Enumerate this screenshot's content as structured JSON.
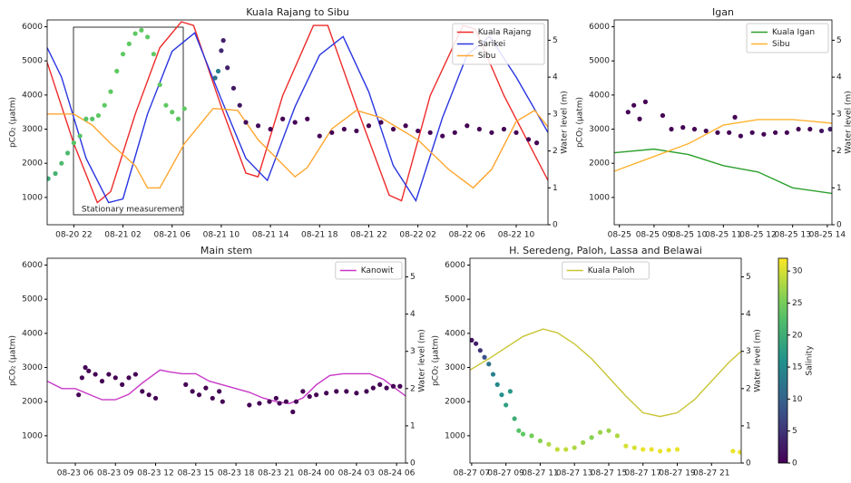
{
  "chart_data": [
    {
      "type": "scatter",
      "title": "Kuala Rajang to Sibu",
      "ylabel": "pCO₂ (µatm)",
      "y2label": "Water level (m)",
      "annotation": "Stationary measurement",
      "xlim": [
        "08-20 19:50",
        "08-22 12:35"
      ],
      "xticks": [
        "08-20 22",
        "08-21 02",
        "08-21 06",
        "08-21 10",
        "08-21 14",
        "08-21 18",
        "08-21 22",
        "08-22 02",
        "08-22 06",
        "08-22 10"
      ],
      "ylim": [
        200,
        6200
      ],
      "yticks": [
        1000,
        2000,
        3000,
        4000,
        5000,
        6000
      ],
      "y2lim": [
        0,
        5.55
      ],
      "y2ticks": [
        0,
        1,
        2,
        3,
        4,
        5
      ],
      "legend": "upper right",
      "colormap": "viridis",
      "points": {
        "x": [
          "08-20 19:55",
          "08-20 20:30",
          "08-20 21:00",
          "08-20 21:30",
          "08-20 22:00",
          "08-20 22:30",
          "08-20 23:00",
          "08-20 23:30",
          "08-21 00:00",
          "08-21 00:30",
          "08-21 01:00",
          "08-21 01:30",
          "08-21 02:00",
          "08-21 02:30",
          "08-21 03:00",
          "08-21 03:30",
          "08-21 04:00",
          "08-21 04:30",
          "08-21 05:00",
          "08-21 05:30",
          "08-21 06:00",
          "08-21 06:30",
          "08-21 07:00",
          "08-21 09:30",
          "08-21 09:45",
          "08-21 10:00",
          "08-21 10:10",
          "08-21 10:30",
          "08-21 11:00",
          "08-21 11:30",
          "08-21 12:00",
          "08-21 13:00",
          "08-21 14:00",
          "08-21 15:00",
          "08-21 16:00",
          "08-21 17:00",
          "08-21 18:00",
          "08-21 19:00",
          "08-21 20:00",
          "08-21 21:00",
          "08-21 22:00",
          "08-21 23:00",
          "08-22 00:00",
          "08-22 01:00",
          "08-22 02:00",
          "08-22 03:00",
          "08-22 04:00",
          "08-22 05:00",
          "08-22 06:00",
          "08-22 07:00",
          "08-22 08:00",
          "08-22 09:00",
          "08-22 10:00",
          "08-22 11:00",
          "08-22 11:40"
        ],
        "values": [
          1550,
          1700,
          2000,
          2300,
          2600,
          2800,
          3300,
          3300,
          3400,
          3700,
          4100,
          4700,
          5200,
          5500,
          5800,
          5900,
          5700,
          5200,
          4300,
          3700,
          3500,
          3300,
          3600,
          4500,
          4700,
          5300,
          5600,
          4800,
          4200,
          3700,
          3200,
          3100,
          3000,
          3300,
          3200,
          3300,
          2800,
          2900,
          3000,
          2950,
          3100,
          3200,
          3000,
          3100,
          2950,
          2900,
          2800,
          2900,
          3100,
          3000,
          2900,
          3000,
          2900,
          2700,
          2600
        ],
        "salinity": [
          20,
          21,
          22,
          22,
          23,
          23,
          23,
          23,
          24,
          24,
          24,
          24,
          24,
          24,
          24,
          24,
          24,
          24,
          24,
          24,
          24,
          24,
          24,
          12,
          14,
          4,
          3,
          3,
          2,
          2,
          1,
          1,
          0,
          0,
          0,
          0,
          0,
          0,
          0,
          0,
          0,
          0,
          0,
          0,
          0,
          0,
          0,
          0,
          0,
          0,
          0,
          0,
          0,
          0,
          0
        ]
      },
      "series": [
        {
          "name": "Kuala Rajang",
          "color": "#ee2a2a",
          "axis": "y2",
          "x": [
            "08-20 19:50",
            "08-20 22:00",
            "08-20 23:55",
            "08-21 01:00",
            "08-21 03:00",
            "08-21 05:00",
            "08-21 06:45",
            "08-21 07:45",
            "08-21 10:00",
            "08-21 12:00",
            "08-21 13:00",
            "08-21 15:00",
            "08-21 17:30",
            "08-21 18:40",
            "08-21 21:00",
            "08-21 23:40",
            "08-22 00:40",
            "08-22 03:00",
            "08-22 05:40",
            "08-22 06:40",
            "08-22 09:00",
            "08-22 12:35"
          ],
          "values": [
            4.4,
            2.2,
            0.6,
            0.9,
            3.0,
            4.8,
            5.5,
            5.4,
            3.2,
            1.4,
            1.3,
            3.5,
            5.4,
            5.4,
            3.2,
            0.8,
            0.65,
            3.5,
            5.4,
            5.3,
            3.5,
            1.2
          ]
        },
        {
          "name": "Sarikei",
          "color": "#2a35e0",
          "axis": "y2",
          "x": [
            "08-20 19:50",
            "08-20 21:00",
            "08-20 23:00",
            "08-21 00:50",
            "08-21 02:00",
            "08-21 04:00",
            "08-21 06:00",
            "08-21 07:50",
            "08-21 10:00",
            "08-21 12:00",
            "08-21 13:45",
            "08-21 16:00",
            "08-21 18:00",
            "08-21 19:55",
            "08-21 22:00",
            "08-22 00:00",
            "08-22 01:50",
            "08-22 04:00",
            "08-22 06:00",
            "08-22 07:50",
            "08-22 10:00",
            "08-22 12:35"
          ],
          "values": [
            4.8,
            4.0,
            1.8,
            0.6,
            0.7,
            3.0,
            4.7,
            5.2,
            3.4,
            1.8,
            1.2,
            3.2,
            4.6,
            5.1,
            3.6,
            1.6,
            0.65,
            2.9,
            4.6,
            5.1,
            4.0,
            2.5
          ]
        },
        {
          "name": "Sibu",
          "color": "#ffa630",
          "axis": "y2",
          "x": [
            "08-20 19:50",
            "08-20 22:00",
            "08-20 23:30",
            "08-21 01:00",
            "08-21 03:00",
            "08-21 04:00",
            "08-21 05:00",
            "08-21 07:00",
            "08-21 09:20",
            "08-21 11:20",
            "08-21 13:00",
            "08-21 16:00",
            "08-21 17:00",
            "08-21 19:00",
            "08-21 21:00",
            "08-21 23:00",
            "08-22 02:00",
            "08-22 04:30",
            "08-22 06:30",
            "08-22 08:00",
            "08-22 10:00",
            "08-22 11:30",
            "08-22 12:35"
          ],
          "values": [
            3.0,
            3.0,
            2.7,
            2.2,
            1.6,
            1.0,
            1.0,
            2.2,
            3.15,
            3.1,
            2.3,
            1.3,
            1.55,
            2.6,
            3.1,
            2.9,
            2.3,
            1.5,
            1.0,
            1.5,
            2.8,
            3.1,
            2.65
          ]
        }
      ]
    },
    {
      "type": "scatter",
      "title": "Igan",
      "ylabel": "pCO₂ (µatm)",
      "y2label": "Water level (m)",
      "xlim": [
        "08-25 07:51",
        "08-25 14:08"
      ],
      "xticks": [
        {
          "value": "08-25 08",
          "label": "08-25"
        },
        "08-25 09",
        "08-25 10",
        "08-25 11",
        "08-25 12",
        "08-25 13",
        "08-25 14"
      ],
      "ylim": [
        200,
        6200
      ],
      "yticks": [
        1000,
        2000,
        3000,
        4000,
        5000,
        6000
      ],
      "y2lim": [
        0,
        5.55
      ],
      "y2ticks": [
        0,
        1,
        2,
        3,
        4,
        5
      ],
      "legend": "upper right",
      "colormap": "viridis",
      "points": {
        "x": [
          "08-25 08:15",
          "08-25 08:25",
          "08-25 08:35",
          "08-25 08:45",
          "08-25 09:15",
          "08-25 09:30",
          "08-25 09:50",
          "08-25 10:10",
          "08-25 10:30",
          "08-25 10:50",
          "08-25 11:10",
          "08-25 11:20",
          "08-25 11:30",
          "08-25 11:50",
          "08-25 12:10",
          "08-25 12:30",
          "08-25 12:50",
          "08-25 13:10",
          "08-25 13:30",
          "08-25 13:50",
          "08-25 14:05"
        ],
        "values": [
          3500,
          3700,
          3300,
          3800,
          3400,
          3000,
          3050,
          3000,
          2950,
          2900,
          2900,
          3350,
          2800,
          2900,
          2850,
          2900,
          2900,
          3000,
          3000,
          2950,
          3000
        ],
        "salinity": [
          0,
          0,
          0,
          0,
          0,
          0,
          0,
          0,
          0,
          0,
          0,
          0,
          0,
          0,
          0,
          0,
          0,
          0,
          0,
          2,
          3
        ]
      },
      "series": [
        {
          "name": "Kuala Igan",
          "color": "#2ca02c",
          "axis": "y2",
          "x": [
            "08-25 07:51",
            "08-25 09:00",
            "08-25 10:00",
            "08-25 11:00",
            "08-25 12:00",
            "08-25 13:00",
            "08-25 14:08"
          ],
          "values": [
            1.95,
            2.05,
            1.9,
            1.6,
            1.43,
            1.0,
            0.85
          ]
        },
        {
          "name": "Sibu",
          "color": "#ffb330",
          "axis": "y2",
          "x": [
            "08-25 07:51",
            "08-25 09:00",
            "08-25 10:00",
            "08-25 11:00",
            "08-25 12:00",
            "08-25 13:00",
            "08-25 14:08"
          ],
          "values": [
            1.45,
            1.85,
            2.2,
            2.7,
            2.85,
            2.85,
            2.75
          ]
        }
      ]
    },
    {
      "type": "scatter",
      "title": "Main stem",
      "ylabel": "pCO₂ (µatm)",
      "y2label": "Water level (m)",
      "xlim": [
        "08-23 03:54",
        "08-24 06:40"
      ],
      "xticks": [
        "08-23 06",
        "08-23 09",
        "08-23 12",
        "08-23 15",
        "08-23 18",
        "08-23 21",
        "08-24 00",
        "08-24 03",
        "08-24 06"
      ],
      "ylim": [
        200,
        6200
      ],
      "yticks": [
        1000,
        2000,
        3000,
        4000,
        5000,
        6000
      ],
      "y2lim": [
        0,
        5.5
      ],
      "y2ticks": [
        0,
        1,
        2,
        3,
        4,
        5
      ],
      "legend": "upper right",
      "colormap": "viridis",
      "points": {
        "x": [
          "08-23 06:15",
          "08-23 06:30",
          "08-23 06:45",
          "08-23 07:00",
          "08-23 07:30",
          "08-23 08:00",
          "08-23 08:30",
          "08-23 09:00",
          "08-23 09:30",
          "08-23 10:00",
          "08-23 10:30",
          "08-23 11:00",
          "08-23 11:30",
          "08-23 12:00",
          "08-23 14:15",
          "08-23 14:45",
          "08-23 15:15",
          "08-23 15:45",
          "08-23 16:15",
          "08-23 16:45",
          "08-23 17:00",
          "08-23 19:00",
          "08-23 19:45",
          "08-23 20:30",
          "08-23 21:00",
          "08-23 21:15",
          "08-23 21:45",
          "08-23 22:15",
          "08-23 22:30",
          "08-23 23:00",
          "08-23 23:30",
          "08-24 00:00",
          "08-24 00:45",
          "08-24 01:30",
          "08-24 02:15",
          "08-24 03:00",
          "08-24 03:45",
          "08-24 04:15",
          "08-24 04:45",
          "08-24 05:15",
          "08-24 05:45",
          "08-24 06:15"
        ],
        "values": [
          2200,
          2700,
          3000,
          2900,
          2800,
          2600,
          2800,
          2700,
          2500,
          2700,
          2800,
          2300,
          2200,
          2100,
          2500,
          2300,
          2200,
          2400,
          2100,
          2300,
          2000,
          1900,
          1950,
          2000,
          2100,
          1950,
          2000,
          1700,
          2000,
          2300,
          2150,
          2200,
          2250,
          2300,
          2300,
          2250,
          2300,
          2400,
          2500,
          2400,
          2450,
          2450
        ],
        "salinity": [
          0,
          0,
          0,
          0,
          0,
          0,
          0,
          0,
          0,
          0,
          0,
          0,
          0,
          0,
          0,
          0,
          0,
          0,
          0,
          0,
          0,
          0,
          0,
          0,
          0,
          0,
          0,
          0,
          0,
          0,
          0,
          0,
          0,
          0,
          0,
          0,
          0,
          0,
          0,
          0,
          0,
          0
        ]
      },
      "series": [
        {
          "name": "Kanowit",
          "color": "#c837c8",
          "axis": "y2",
          "x": [
            "08-23 03:54",
            "08-23 05:00",
            "08-23 06:00",
            "08-23 07:00",
            "08-23 08:00",
            "08-23 09:00",
            "08-23 10:00",
            "08-23 11:00",
            "08-23 12:20",
            "08-23 13:00",
            "08-23 14:00",
            "08-23 15:00",
            "08-23 16:00",
            "08-23 17:00",
            "08-23 18:00",
            "08-23 19:00",
            "08-23 20:00",
            "08-23 21:00",
            "08-23 22:00",
            "08-23 23:00",
            "08-24 00:00",
            "08-24 01:00",
            "08-24 02:00",
            "08-24 03:00",
            "08-24 04:00",
            "08-24 05:00",
            "08-24 06:40"
          ],
          "values": [
            2.2,
            2.0,
            2.0,
            1.85,
            1.7,
            1.7,
            1.85,
            2.15,
            2.5,
            2.45,
            2.4,
            2.4,
            2.2,
            2.1,
            2.0,
            1.9,
            1.75,
            1.65,
            1.6,
            1.75,
            2.1,
            2.35,
            2.4,
            2.4,
            2.4,
            2.25,
            1.8
          ]
        }
      ]
    },
    {
      "type": "scatter",
      "title": "H. Seredeng, Paloh, Lassa and Belawai",
      "ylabel": "pCO₂ (µatm)",
      "y2label": "Water level (m)",
      "xlim": [
        "08-27 06:54",
        "08-27 22:44"
      ],
      "xticks": [
        "08-27 07",
        "08-27 09",
        "08-27 11",
        "08-27 13",
        "08-27 15",
        "08-27 17",
        "08-27 19",
        "08-27 21"
      ],
      "ylim": [
        200,
        6200
      ],
      "yticks": [
        1000,
        2000,
        3000,
        4000,
        5000,
        6000
      ],
      "y2lim": [
        0,
        5.5
      ],
      "y2ticks": [
        0,
        1,
        2,
        3,
        4,
        5
      ],
      "legend": "upper center",
      "colormap": "viridis",
      "colorbar": {
        "label": "Salinity",
        "lim": [
          0,
          32
        ],
        "ticks": [
          0,
          5,
          10,
          15,
          20,
          25,
          30
        ]
      },
      "points": {
        "x": [
          "08-27 07:00",
          "08-27 07:15",
          "08-27 07:30",
          "08-27 07:45",
          "08-27 08:00",
          "08-27 08:15",
          "08-27 08:30",
          "08-27 08:45",
          "08-27 09:00",
          "08-27 09:15",
          "08-27 09:30",
          "08-27 09:45",
          "08-27 10:00",
          "08-27 10:30",
          "08-27 11:00",
          "08-27 11:30",
          "08-27 12:00",
          "08-27 12:30",
          "08-27 13:00",
          "08-27 13:30",
          "08-27 14:00",
          "08-27 14:30",
          "08-27 15:00",
          "08-27 15:30",
          "08-27 16:00",
          "08-27 16:30",
          "08-27 17:00",
          "08-27 17:30",
          "08-27 18:00",
          "08-27 18:30",
          "08-27 19:00",
          "08-27 22:15",
          "08-27 22:40"
        ],
        "values": [
          3800,
          3700,
          3500,
          3300,
          3100,
          2800,
          2500,
          2200,
          1900,
          2300,
          1500,
          1150,
          1050,
          1000,
          850,
          750,
          600,
          600,
          650,
          800,
          950,
          1100,
          1150,
          1000,
          700,
          650,
          600,
          600,
          550,
          580,
          600,
          550,
          520
        ],
        "salinity": [
          2,
          3,
          5,
          8,
          12,
          14,
          15,
          16,
          18,
          17,
          20,
          23,
          24,
          25,
          26,
          28,
          29,
          29,
          28,
          27,
          26,
          27,
          27,
          28,
          30,
          30,
          31,
          31,
          31,
          31,
          31,
          31,
          31
        ]
      },
      "series": [
        {
          "name": "Kuala Paloh",
          "color": "#c9c534",
          "axis": "y2",
          "x": [
            "08-27 06:54",
            "08-27 08:00",
            "08-27 09:00",
            "08-27 10:00",
            "08-27 11:10",
            "08-27 12:00",
            "08-27 13:00",
            "08-27 14:00",
            "08-27 15:00",
            "08-27 16:00",
            "08-27 17:00",
            "08-27 18:00",
            "08-27 19:00",
            "08-27 20:00",
            "08-27 21:00",
            "08-27 22:00",
            "08-27 22:44"
          ],
          "values": [
            2.5,
            2.8,
            3.1,
            3.4,
            3.6,
            3.5,
            3.2,
            2.8,
            2.3,
            1.8,
            1.35,
            1.25,
            1.35,
            1.7,
            2.2,
            2.7,
            3.0
          ]
        }
      ]
    }
  ]
}
